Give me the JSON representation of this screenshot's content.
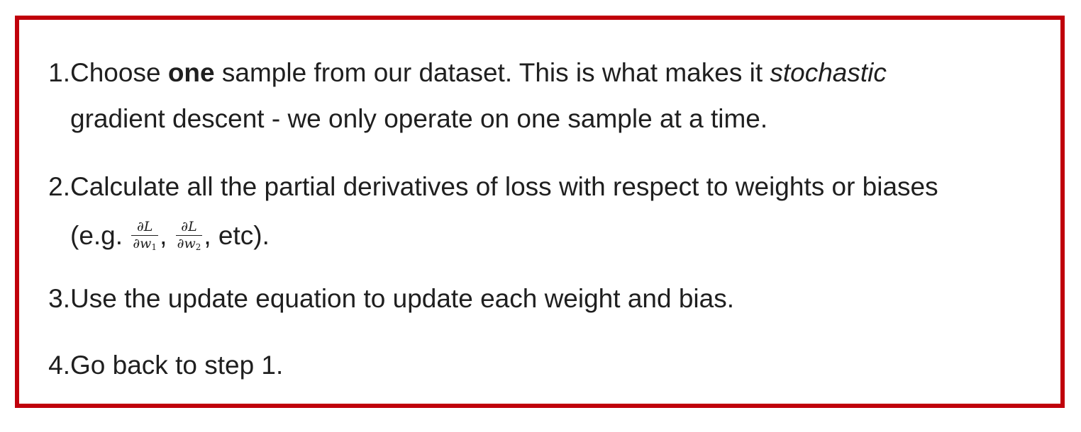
{
  "steps": [
    {
      "number": "1.",
      "line1_pre": "Choose ",
      "line1_bold": "one",
      "line1_mid": " sample from our dataset. This is what makes it ",
      "line1_italic": "stochastic",
      "line2": "gradient descent - we only operate on one sample at a time."
    },
    {
      "number": "2.",
      "line1": "Calculate all the partial derivatives of loss with respect to weights or biases",
      "line2_pre": "(e.g. ",
      "frac1_num": "∂L",
      "frac1_den": "∂w",
      "frac1_sub": "1",
      "sep": ", ",
      "frac2_num": "∂L",
      "frac2_den": "∂w",
      "frac2_sub": "2",
      "line2_post": ", etc)."
    },
    {
      "number": "3.",
      "line1": "Use the update equation to update each weight and bias."
    },
    {
      "number": "4.",
      "line1": "Go back to step 1."
    }
  ],
  "colors": {
    "border": "#c0000b",
    "text": "#1f1f1f",
    "background": "#ffffff"
  }
}
